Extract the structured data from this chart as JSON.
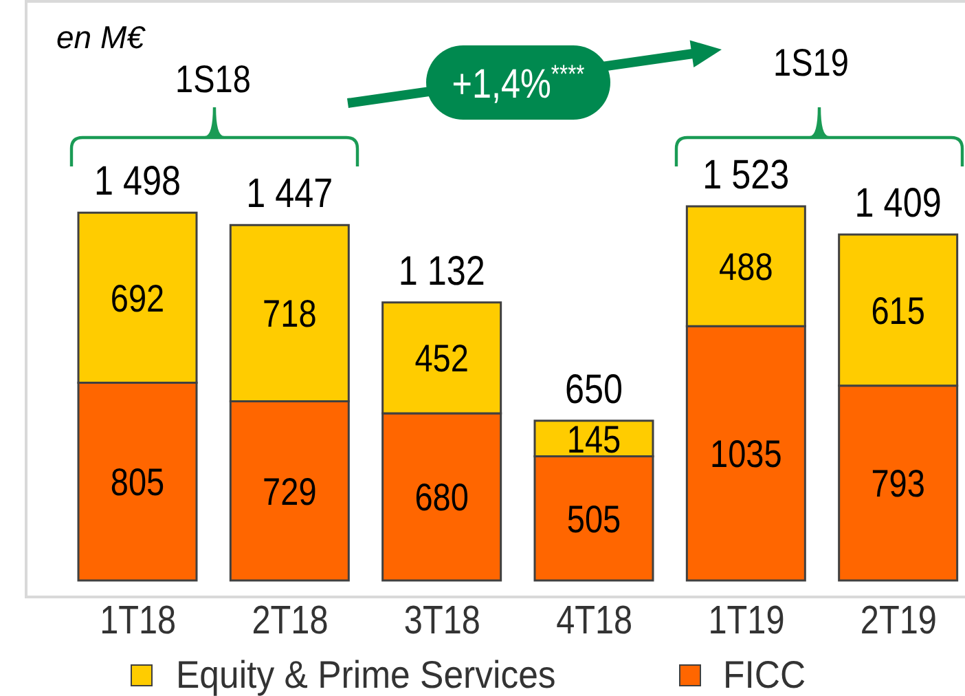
{
  "chart_data": {
    "type": "bar",
    "stacked": true,
    "categories": [
      "1T18",
      "2T18",
      "3T18",
      "4T18",
      "1T19",
      "2T19"
    ],
    "series": [
      {
        "name": "FICC",
        "color": "#ff6600",
        "values": [
          805,
          729,
          680,
          505,
          1035,
          793
        ]
      },
      {
        "name": "Equity & Prime Services",
        "color": "#ffcc00",
        "values": [
          692,
          718,
          452,
          145,
          488,
          615
        ]
      }
    ],
    "data_labels": true,
    "totals": [
      "1 498",
      "1 447",
      "1 132",
      "650",
      "1 523",
      "1 409"
    ],
    "legend": "bottom",
    "annotations": [
      "en M€",
      "1S18",
      "1S19",
      "+1,4%$^{****}$"
    ]
  }
}
